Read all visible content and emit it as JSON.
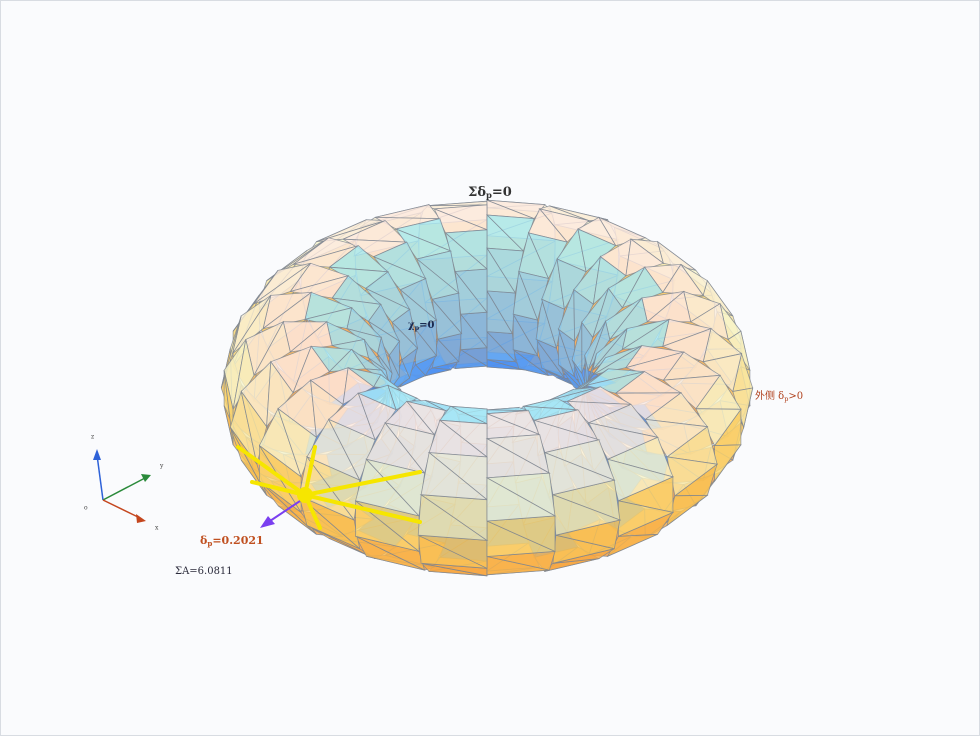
{
  "title": {
    "parts": [
      "Σδ",
      "p",
      "=0"
    ]
  },
  "annotations": {
    "inner": {
      "parts": [
        "χ",
        "p",
        "=0"
      ]
    },
    "outer": {
      "parts": [
        "外侧 δ",
        "p",
        ">0"
      ]
    },
    "point": {
      "parts": [
        "δ",
        "p",
        "=0.2021"
      ]
    },
    "area": {
      "parts": [
        "ΣA=6.0811"
      ]
    }
  },
  "axes": {
    "z": "z",
    "y": "y",
    "origin": "o",
    "x": "x"
  }
}
